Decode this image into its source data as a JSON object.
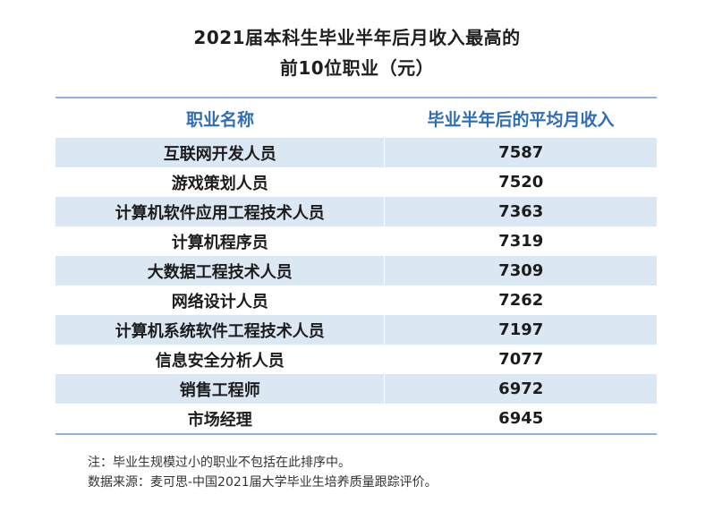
{
  "title_line1": "2021届本科生毕业半年后月收入最高的",
  "title_line2": "前10位职业（元）",
  "table": {
    "headers": [
      "职业名称",
      "毕业半年后的平均月收入"
    ],
    "rows": [
      {
        "name": "互联网开发人员",
        "income": "7587"
      },
      {
        "name": "游戏策划人员",
        "income": "7520"
      },
      {
        "name": "计算机软件应用工程技术人员",
        "income": "7363"
      },
      {
        "name": "计算机程序员",
        "income": "7319"
      },
      {
        "name": "大数据工程技术人员",
        "income": "7309"
      },
      {
        "name": "网络设计人员",
        "income": "7262"
      },
      {
        "name": "计算机系统软件工程技术人员",
        "income": "7197"
      },
      {
        "name": "信息安全分析人员",
        "income": "7077"
      },
      {
        "name": "销售工程师",
        "income": "6972"
      },
      {
        "name": "市场经理",
        "income": "6945"
      }
    ]
  },
  "notes": [
    "注：毕业生规模过小的职业不包括在此排序中。",
    "数据来源：麦可思-中国2021届大学毕业生培养质量跟踪评价。"
  ],
  "colors": {
    "header_text": "#2f6db5",
    "band": "#dce7f4",
    "rule": "#8fb3dc"
  }
}
